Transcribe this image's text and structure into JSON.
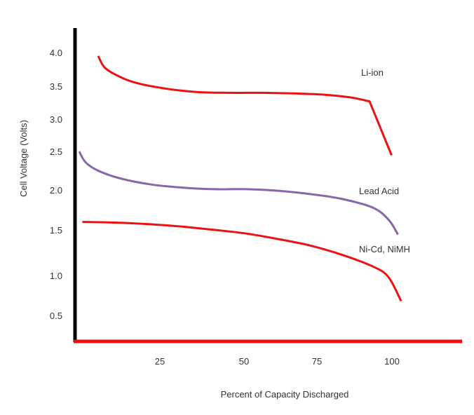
{
  "chart_data": {
    "type": "line",
    "title": "",
    "xlabel": "Percent of Capacity Discharged",
    "ylabel": "Cell Voltage (Volts)",
    "x_ticks": [
      "25",
      "50",
      "75",
      "100"
    ],
    "y_ticks": [
      "4.0",
      "3.5",
      "3.0",
      "2.5",
      "2.0",
      "1.5",
      "1.0",
      "0.5"
    ],
    "grid": false,
    "colors": {
      "x_axis": "#ee1111",
      "y_axis": "#000000",
      "li_ion": "#ee1111",
      "lead_acid": "#8866aa",
      "nicd": "#ee1111"
    },
    "series": [
      {
        "name": "Li-ion",
        "x": [
          8,
          10,
          14,
          20,
          30,
          40,
          50,
          60,
          70,
          80,
          88,
          94,
          101
        ],
        "y": [
          3.95,
          3.78,
          3.66,
          3.55,
          3.46,
          3.41,
          3.4,
          3.4,
          3.39,
          3.37,
          3.33,
          3.27,
          2.45
        ]
      },
      {
        "name": "Lead Acid",
        "x": [
          2,
          4,
          8,
          15,
          25,
          35,
          45,
          55,
          65,
          75,
          85,
          95,
          100,
          103
        ],
        "y": [
          2.5,
          2.36,
          2.25,
          2.15,
          2.07,
          2.03,
          2.01,
          2.01,
          1.99,
          1.95,
          1.89,
          1.78,
          1.63,
          1.45
        ]
      },
      {
        "name": "Ni-Cd, NiMH",
        "x": [
          3,
          15,
          25,
          35,
          45,
          55,
          65,
          75,
          85,
          95,
          100,
          104
        ],
        "y": [
          1.6,
          1.59,
          1.57,
          1.54,
          1.5,
          1.46,
          1.4,
          1.33,
          1.23,
          1.1,
          0.98,
          0.68
        ]
      }
    ]
  }
}
